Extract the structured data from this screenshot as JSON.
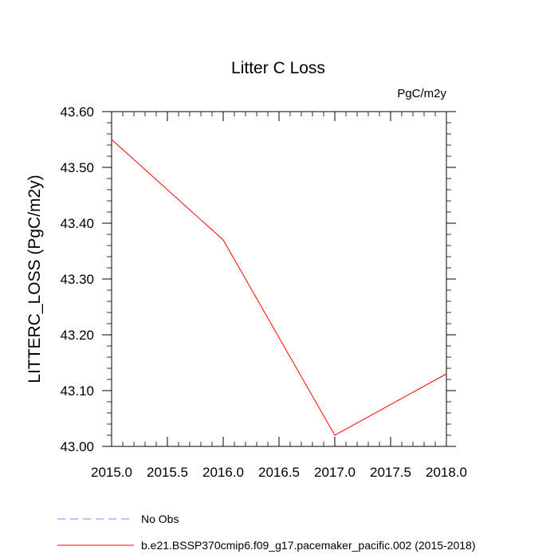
{
  "chart_data": {
    "type": "line",
    "title": "Litter C Loss",
    "units_label": "PgC/m2y",
    "xlabel": "",
    "ylabel": "LITTERC_LOSS  (PgC/m2y)",
    "xlim": [
      2015.0,
      2018.0
    ],
    "ylim": [
      43.0,
      43.6
    ],
    "x_ticks": [
      "2015.0",
      "2015.5",
      "2016.0",
      "2016.5",
      "2017.0",
      "2017.5",
      "2018.0"
    ],
    "y_ticks": [
      "43.00",
      "43.10",
      "43.20",
      "43.30",
      "43.40",
      "43.50",
      "43.60"
    ],
    "grid": false,
    "legend_position": "bottom",
    "series": [
      {
        "name": "b.e21.BSSP370cmip6.f09_g17.pacemaker_pacific.002 (2015-2018)",
        "color": "#ff0000",
        "style": "solid",
        "x": [
          2015,
          2016,
          2017,
          2018
        ],
        "y": [
          43.55,
          43.37,
          43.02,
          43.13
        ]
      }
    ],
    "legend": [
      {
        "label": "No Obs",
        "color": "#8080ff",
        "style": "dashed"
      },
      {
        "label": "b.e21.BSSP370cmip6.f09_g17.pacemaker_pacific.002 (2015-2018)",
        "color": "#ff0000",
        "style": "solid"
      }
    ]
  }
}
